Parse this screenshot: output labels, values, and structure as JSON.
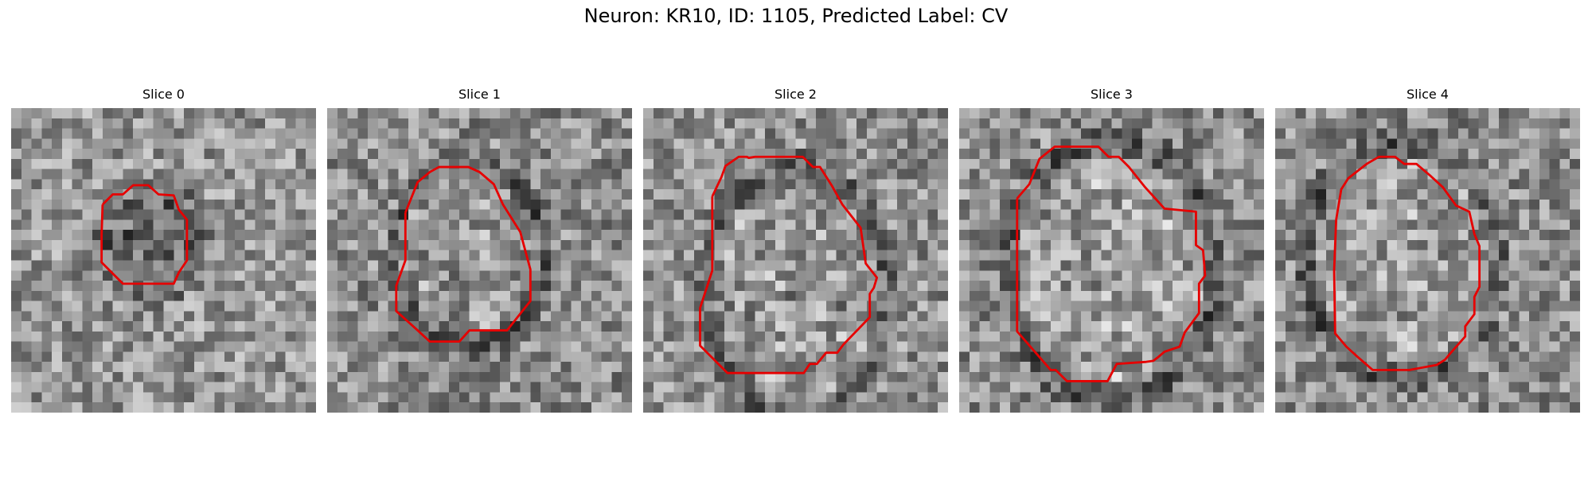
{
  "figure": {
    "title": "Neuron: KR10, ID: 1105, Predicted Label: CV"
  },
  "slices": [
    {
      "title": "Slice 0",
      "contour_color": "#e60000"
    },
    {
      "title": "Slice 1",
      "contour_color": "#e60000"
    },
    {
      "title": "Slice 2",
      "contour_color": "#e60000"
    },
    {
      "title": "Slice 3",
      "contour_color": "#e60000"
    },
    {
      "title": "Slice 4",
      "contour_color": "#e60000"
    }
  ]
}
